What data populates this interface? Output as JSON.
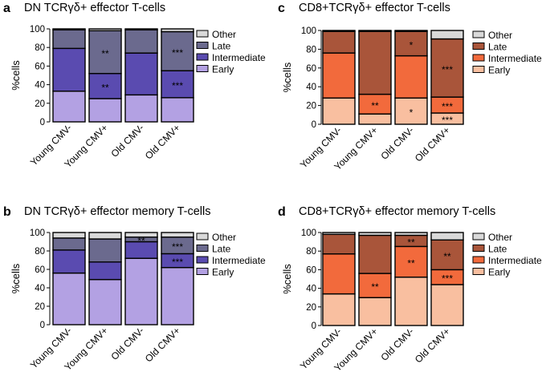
{
  "chart_data": [
    {
      "panel": "a",
      "type": "bar",
      "stacked": true,
      "title": "DN TCRγδ+ effector T-cells",
      "ylabel": "%cells",
      "ylim": [
        0,
        100
      ],
      "yticks": [
        "0",
        "20",
        "40",
        "60",
        "80",
        "100"
      ],
      "categories": [
        "Young CMV-",
        "Young CMV+",
        "Old CMV-",
        "Old CMV+"
      ],
      "series": [
        {
          "name": "Early",
          "color": "#b3a1e3",
          "values": [
            33,
            25,
            29,
            26
          ],
          "sig": [
            "",
            "",
            "",
            ""
          ]
        },
        {
          "name": "Intermediate",
          "color": "#5a4bb0",
          "values": [
            46,
            27,
            45,
            29
          ],
          "sig": [
            "",
            "**",
            "",
            "***"
          ]
        },
        {
          "name": "Late",
          "color": "#6b6a8e",
          "values": [
            20,
            46,
            25,
            42
          ],
          "sig": [
            "",
            "**",
            "",
            "***"
          ]
        },
        {
          "name": "Other",
          "color": "#d9d9d9",
          "values": [
            1,
            2,
            1,
            3
          ],
          "sig": [
            "",
            "",
            "",
            ""
          ]
        }
      ],
      "legend": [
        "Other",
        "Late",
        "Intermediate",
        "Early"
      ]
    },
    {
      "panel": "b",
      "type": "bar",
      "stacked": true,
      "title": "DN TCRγδ+ effector memory T-cells",
      "ylabel": "%cells",
      "ylim": [
        0,
        100
      ],
      "yticks": [
        "0",
        "20",
        "40",
        "60",
        "80",
        "100"
      ],
      "categories": [
        "Young CMV-",
        "Young CMV+",
        "Old CMV-",
        "Old CMV+"
      ],
      "series": [
        {
          "name": "Early",
          "color": "#b3a1e3",
          "values": [
            56,
            49,
            72,
            62
          ],
          "sig": [
            "",
            "",
            "",
            ""
          ]
        },
        {
          "name": "Intermediate",
          "color": "#5a4bb0",
          "values": [
            25,
            19,
            18,
            15
          ],
          "sig": [
            "",
            "",
            "",
            "***"
          ]
        },
        {
          "name": "Late",
          "color": "#6b6a8e",
          "values": [
            13,
            25,
            5,
            18
          ],
          "sig": [
            "",
            "",
            "**",
            "***"
          ]
        },
        {
          "name": "Other",
          "color": "#d9d9d9",
          "values": [
            6,
            7,
            5,
            5
          ],
          "sig": [
            "",
            "",
            "",
            ""
          ]
        }
      ],
      "legend": [
        "Other",
        "Late",
        "Intermediate",
        "Early"
      ]
    },
    {
      "panel": "c",
      "type": "bar",
      "stacked": true,
      "title": "CD8+TCRγδ+ effector T-cells",
      "ylabel": "%cells",
      "ylim": [
        0,
        100
      ],
      "yticks": [
        "0",
        "20",
        "40",
        "60",
        "80",
        "100"
      ],
      "categories": [
        "Young CMV-",
        "Young CMV+",
        "Old CMV-",
        "Old CMV+"
      ],
      "series": [
        {
          "name": "Early",
          "color": "#f9bfa0",
          "values": [
            28,
            11,
            28,
            12
          ],
          "sig": [
            "",
            "",
            "*",
            "***"
          ]
        },
        {
          "name": "Intermediate",
          "color": "#f26a3c",
          "values": [
            48,
            21,
            45,
            17
          ],
          "sig": [
            "",
            "**",
            "",
            "***"
          ]
        },
        {
          "name": "Late",
          "color": "#a9553a",
          "values": [
            23,
            67,
            26,
            62
          ],
          "sig": [
            "",
            "",
            "*",
            "***"
          ]
        },
        {
          "name": "Other",
          "color": "#d9d9d9",
          "values": [
            1,
            1,
            1,
            9
          ],
          "sig": [
            "",
            "",
            "",
            ""
          ]
        }
      ],
      "legend": [
        "Other",
        "Late",
        "Intermediate",
        "Early"
      ]
    },
    {
      "panel": "d",
      "type": "bar",
      "stacked": true,
      "title": "CD8+TCRγδ+ effector memory T-cells",
      "ylabel": "%cells",
      "ylim": [
        0,
        100
      ],
      "yticks": [
        "0",
        "20",
        "40",
        "60",
        "80",
        "100"
      ],
      "categories": [
        "Young CMV-",
        "Young CMV+",
        "Old CMV-",
        "Old CMV+"
      ],
      "series": [
        {
          "name": "Early",
          "color": "#f9bfa0",
          "values": [
            34,
            30,
            52,
            44
          ],
          "sig": [
            "",
            "",
            "",
            ""
          ]
        },
        {
          "name": "Intermediate",
          "color": "#f26a3c",
          "values": [
            43,
            26,
            33,
            16
          ],
          "sig": [
            "",
            "**",
            "**",
            "***"
          ]
        },
        {
          "name": "Late",
          "color": "#a9553a",
          "values": [
            21,
            41,
            12,
            32
          ],
          "sig": [
            "",
            "",
            "**",
            "**"
          ]
        },
        {
          "name": "Other",
          "color": "#d9d9d9",
          "values": [
            2,
            3,
            3,
            8
          ],
          "sig": [
            "",
            "",
            "",
            ""
          ]
        }
      ],
      "legend": [
        "Other",
        "Late",
        "Intermediate",
        "Early"
      ]
    }
  ]
}
